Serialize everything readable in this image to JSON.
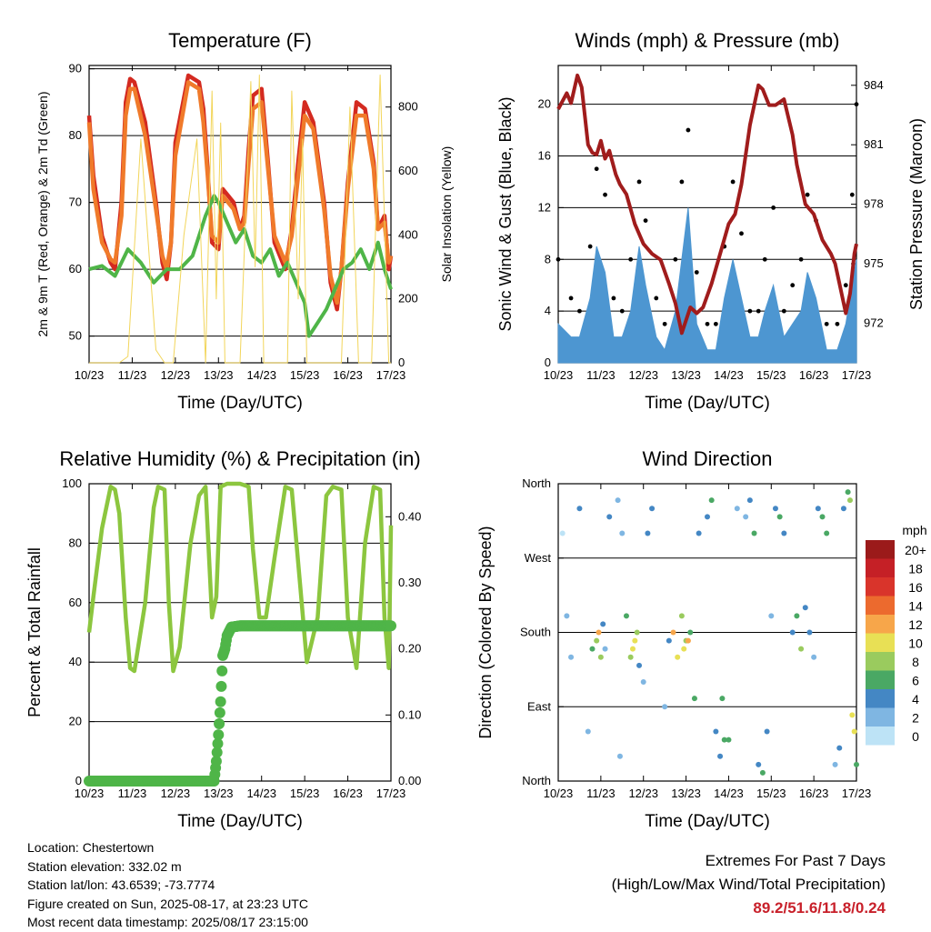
{
  "footer": {
    "location": "Location: Chestertown",
    "elevation": "Station elevation: 332.02 m",
    "latlon": "Station lat/lon: 43.6539; -73.7774",
    "created": "Figure created on Sun, 2025-08-17, at 23:23 UTC",
    "timestamp": "Most recent data timestamp: 2025/08/17 23:15:00",
    "extremes_title": "Extremes For Past 7 Days",
    "extremes_legend": "(High/Low/Max Wind/Total Precipitation)",
    "extremes_values": "89.2/51.6/11.8/0.24"
  },
  "colors": {
    "temp2m": "#d42a20",
    "temp9m": "#f07a2a",
    "dewpoint": "#4fb548",
    "solar": "#f2d55a",
    "wind": "#4d96d1",
    "gust": "#000000",
    "pressure": "#a01c1c",
    "rh": "#8cc63f",
    "precip": "#4fb548",
    "extremes": "#c8202a"
  },
  "chart_data": [
    {
      "type": "line",
      "title": "Temperature (F)",
      "xlabel": "Time (Day/UTC)",
      "ylabel": "2m & 9m T (Red, Orange) & 2m Td (Green)",
      "y2label": "Solar Insolation (Yellow)",
      "xticks": [
        "10/23",
        "11/23",
        "12/23",
        "13/23",
        "14/23",
        "15/23",
        "16/23",
        "17/23"
      ],
      "xlim": [
        0,
        7
      ],
      "ylim": [
        46,
        90.5
      ],
      "yticks": [
        50,
        60,
        70,
        80,
        90
      ],
      "y2lim": [
        0,
        930
      ],
      "y2ticks": [
        0,
        200,
        400,
        600,
        800
      ],
      "grid": true,
      "series": [
        {
          "key": "temp2m",
          "x": [
            0,
            0.1,
            0.3,
            0.5,
            0.6,
            0.75,
            0.85,
            0.95,
            1.05,
            1.3,
            1.55,
            1.7,
            1.8,
            1.9,
            2.0,
            2.3,
            2.55,
            2.65,
            2.75,
            2.85,
            3.0,
            3.1,
            3.35,
            3.5,
            3.6,
            3.7,
            3.8,
            4.0,
            4.15,
            4.3,
            4.55,
            4.7,
            4.85,
            5.0,
            5.2,
            5.45,
            5.6,
            5.75,
            5.85,
            6.0,
            6.2,
            6.4,
            6.6,
            6.7,
            6.85,
            6.95,
            7.0
          ],
          "y": [
            83,
            74,
            65,
            61,
            60,
            70,
            85,
            88.5,
            88,
            82,
            70,
            61,
            58.5,
            64,
            79,
            89,
            88,
            84,
            75,
            64,
            63,
            72,
            70,
            66,
            68,
            78,
            86,
            87,
            76,
            64,
            60,
            66,
            76,
            85,
            82,
            70,
            58,
            54,
            60,
            73,
            85,
            84,
            76,
            66,
            68,
            60,
            62
          ]
        },
        {
          "key": "temp9m",
          "x": [
            0,
            0.1,
            0.3,
            0.5,
            0.6,
            0.75,
            0.85,
            0.95,
            1.05,
            1.3,
            1.55,
            1.7,
            1.8,
            1.9,
            2.0,
            2.3,
            2.55,
            2.65,
            2.75,
            2.85,
            3.0,
            3.1,
            3.35,
            3.5,
            3.6,
            3.7,
            3.8,
            4.0,
            4.15,
            4.3,
            4.55,
            4.7,
            4.85,
            5.0,
            5.2,
            5.45,
            5.6,
            5.75,
            5.85,
            6.0,
            6.2,
            6.4,
            6.6,
            6.7,
            6.85,
            6.95,
            7.0
          ],
          "y": [
            82,
            72,
            64,
            61.5,
            61,
            68,
            83,
            87,
            87,
            80,
            69,
            62,
            60,
            64,
            77,
            88,
            87,
            82,
            74,
            65,
            64,
            71,
            69,
            66,
            67,
            76,
            84,
            85,
            75,
            65,
            61,
            65,
            74,
            83,
            81,
            69,
            59,
            55,
            60,
            72,
            83,
            83,
            75,
            66,
            67,
            61,
            62
          ]
        },
        {
          "key": "dewpoint",
          "x": [
            0,
            0.3,
            0.6,
            0.9,
            1.2,
            1.5,
            1.8,
            2.1,
            2.4,
            2.7,
            2.9,
            3.0,
            3.2,
            3.4,
            3.6,
            3.8,
            4.0,
            4.2,
            4.4,
            4.6,
            4.8,
            5.0,
            5.1,
            5.3,
            5.5,
            5.7,
            5.9,
            6.1,
            6.3,
            6.5,
            6.7,
            6.85,
            7.0
          ],
          "y": [
            60,
            60.5,
            59,
            63,
            61,
            58,
            60,
            60,
            62,
            68,
            71,
            70,
            67,
            64,
            66,
            62,
            61,
            63,
            59,
            61,
            58,
            55,
            50,
            52,
            54,
            57,
            60,
            61,
            63,
            60,
            64,
            60,
            57
          ]
        },
        {
          "key": "solar",
          "x": [
            0,
            0.3,
            0.7,
            0.9,
            1.2,
            1.55,
            1.75,
            1.95,
            2.2,
            2.5,
            2.7,
            2.85,
            2.95,
            3.05,
            3.15,
            3.3,
            3.5,
            3.75,
            3.85,
            3.95,
            4.05,
            4.2,
            4.4,
            4.6,
            4.7,
            4.85,
            4.95,
            5.05,
            5.25,
            5.5,
            5.65,
            5.85,
            6.05,
            6.25,
            6.45,
            6.55,
            6.75,
            6.95,
            7.0
          ],
          "y": [
            0,
            0,
            0,
            20,
            700,
            40,
            0,
            0,
            400,
            700,
            0,
            850,
            200,
            750,
            0,
            0,
            0,
            880,
            300,
            900,
            0,
            0,
            0,
            0,
            850,
            200,
            700,
            0,
            0,
            0,
            0,
            0,
            800,
            0,
            0,
            0,
            900,
            0,
            0
          ]
        }
      ]
    },
    {
      "type": "line",
      "title": "Winds (mph) & Pressure (mb)",
      "xlabel": "Time (Day/UTC)",
      "ylabel": "Sonic Wind & Gust (Blue, Black)",
      "y2label": "Station Pressure (Maroon)",
      "xticks": [
        "10/23",
        "11/23",
        "12/23",
        "13/23",
        "14/23",
        "15/23",
        "16/23",
        "17/23"
      ],
      "xlim": [
        0,
        7
      ],
      "ylim": [
        0,
        23
      ],
      "yticks": [
        0,
        4,
        8,
        12,
        16,
        20
      ],
      "y2lim": [
        970.0,
        985.0
      ],
      "y2ticks": [
        972,
        975,
        978,
        981,
        984
      ],
      "grid": true,
      "series": [
        {
          "key": "wind",
          "x": [
            0,
            0.3,
            0.5,
            0.75,
            0.9,
            1.1,
            1.3,
            1.5,
            1.7,
            1.9,
            2.05,
            2.3,
            2.5,
            2.75,
            2.9,
            3.05,
            3.25,
            3.5,
            3.7,
            3.9,
            4.1,
            4.3,
            4.5,
            4.7,
            4.85,
            5.05,
            5.3,
            5.5,
            5.7,
            5.85,
            6.05,
            6.3,
            6.55,
            6.75,
            6.9,
            7.0
          ],
          "y": [
            3,
            2,
            2,
            5,
            9,
            7,
            2,
            2,
            4,
            9,
            6,
            2,
            1,
            4,
            8,
            12,
            3,
            1,
            1,
            5,
            8,
            5,
            2,
            2,
            4,
            6,
            2,
            3,
            4,
            7,
            5,
            1,
            1,
            3,
            6,
            8
          ]
        },
        {
          "key": "gust",
          "x": [
            0,
            0.3,
            0.5,
            0.75,
            0.9,
            1.1,
            1.3,
            1.5,
            1.7,
            1.9,
            2.05,
            2.3,
            2.5,
            2.75,
            2.9,
            3.05,
            3.25,
            3.5,
            3.7,
            3.9,
            4.1,
            4.3,
            4.5,
            4.7,
            4.85,
            5.05,
            5.3,
            5.5,
            5.7,
            5.85,
            6.05,
            6.3,
            6.55,
            6.75,
            6.9,
            7.0
          ],
          "y": [
            8,
            5,
            4,
            9,
            15,
            13,
            5,
            4,
            8,
            14,
            11,
            5,
            3,
            8,
            14,
            18,
            7,
            3,
            3,
            9,
            14,
            10,
            4,
            4,
            8,
            12,
            4,
            6,
            8,
            13,
            11,
            3,
            3,
            6,
            13,
            20
          ]
        },
        {
          "key": "pressure",
          "x": [
            0,
            0.1,
            0.2,
            0.3,
            0.45,
            0.55,
            0.7,
            0.8,
            0.9,
            1.0,
            1.1,
            1.2,
            1.35,
            1.45,
            1.6,
            1.8,
            2.0,
            2.2,
            2.4,
            2.6,
            2.75,
            2.9,
            3.1,
            3.25,
            3.4,
            3.6,
            3.8,
            4.0,
            4.15,
            4.3,
            4.5,
            4.7,
            4.8,
            4.95,
            5.1,
            5.3,
            5.5,
            5.6,
            5.8,
            6.0,
            6.2,
            6.4,
            6.5,
            6.6,
            6.75,
            6.85,
            6.95,
            7.0
          ],
          "y": [
            982.8,
            983.2,
            983.6,
            983.1,
            984.5,
            983.9,
            981.0,
            980.6,
            980.5,
            981.2,
            980.3,
            980.7,
            979.5,
            979.0,
            978.5,
            977.0,
            976.0,
            975.5,
            975.2,
            974.0,
            973.0,
            971.5,
            972.8,
            972.5,
            972.8,
            974.0,
            975.5,
            977.0,
            977.5,
            979.0,
            982.0,
            984.0,
            983.8,
            983.0,
            983.0,
            983.3,
            981.5,
            980.0,
            978.0,
            977.5,
            976.2,
            975.5,
            975.0,
            974.0,
            972.5,
            973.5,
            975.5,
            976.0
          ]
        }
      ]
    },
    {
      "type": "line",
      "title": "Relative Humidity (%) & Precipitation (in)",
      "xlabel": "Time (Day/UTC)",
      "ylabel": "Percent & Total Rainfall",
      "xticks": [
        "10/23",
        "11/23",
        "12/23",
        "13/23",
        "14/23",
        "15/23",
        "16/23",
        "17/23"
      ],
      "xlim": [
        0,
        7
      ],
      "ylim": [
        0,
        100
      ],
      "yticks": [
        0,
        20,
        40,
        60,
        80,
        100
      ],
      "y2lim": [
        0,
        0.45
      ],
      "y2ticks": [
        "0.00",
        "0.10",
        "0.20",
        "0.30",
        "0.40"
      ],
      "grid": true,
      "series": [
        {
          "key": "rh",
          "x": [
            0,
            0.1,
            0.3,
            0.5,
            0.6,
            0.7,
            0.85,
            0.95,
            1.05,
            1.3,
            1.5,
            1.6,
            1.75,
            1.85,
            1.95,
            2.1,
            2.35,
            2.55,
            2.7,
            2.85,
            2.95,
            3.05,
            3.2,
            3.5,
            3.7,
            3.8,
            3.95,
            4.1,
            4.3,
            4.55,
            4.7,
            4.9,
            5.05,
            5.3,
            5.5,
            5.65,
            5.85,
            6.0,
            6.2,
            6.4,
            6.6,
            6.75,
            6.85,
            6.95,
            7.0
          ],
          "y": [
            50,
            62,
            85,
            99,
            98,
            90,
            55,
            38,
            37,
            60,
            92,
            99,
            98,
            60,
            37,
            45,
            80,
            96,
            99,
            55,
            62,
            99,
            100,
            100,
            99,
            78,
            55,
            55,
            75,
            99,
            98,
            65,
            40,
            55,
            96,
            99,
            98,
            55,
            38,
            80,
            99,
            98,
            55,
            38,
            86
          ]
        },
        {
          "key": "precip",
          "x": [
            0,
            0.5,
            1.0,
            1.5,
            2.0,
            2.5,
            2.9,
            2.95,
            3.0,
            3.05,
            3.1,
            3.15,
            3.2,
            3.3,
            3.5,
            4.0,
            5.0,
            6.0,
            7.0
          ],
          "y": [
            0,
            0,
            0,
            0,
            0,
            0,
            0,
            0.03,
            0.07,
            0.12,
            0.19,
            0.2,
            0.22,
            0.233,
            0.235,
            0.235,
            0.235,
            0.235,
            0.235
          ]
        }
      ]
    },
    {
      "type": "scatter",
      "title": "Wind Direction",
      "xlabel": "Time (Day/UTC)",
      "ylabel": "Direction (Colored By Speed)",
      "xticks": [
        "10/23",
        "11/23",
        "12/23",
        "13/23",
        "14/23",
        "15/23",
        "16/23",
        "17/23"
      ],
      "xlim": [
        0,
        7
      ],
      "ylim": [
        0,
        360
      ],
      "ytick_labels": [
        "North",
        "East",
        "South",
        "West",
        "North"
      ],
      "yticks": [
        0,
        90,
        180,
        270,
        360
      ],
      "grid": true,
      "legend": {
        "title": "mph",
        "placement": "right",
        "labels": [
          "20+",
          "18",
          "16",
          "14",
          "12",
          "10",
          "8",
          "6",
          "4",
          "2",
          "0"
        ],
        "colors": [
          "#9b1a1a",
          "#c52026",
          "#d9342b",
          "#ec6a2e",
          "#f7a64a",
          "#e8e055",
          "#9acb5e",
          "#4aa864",
          "#4487c4",
          "#7fb6e2",
          "#bde3f6"
        ]
      },
      "points": {
        "x": [
          0.1,
          0.2,
          0.3,
          0.5,
          0.7,
          0.8,
          0.9,
          0.95,
          1.0,
          1.05,
          1.1,
          1.2,
          1.4,
          1.45,
          1.5,
          1.6,
          1.7,
          1.75,
          1.8,
          1.85,
          1.9,
          2.0,
          2.1,
          2.2,
          2.5,
          2.6,
          2.7,
          2.8,
          2.9,
          2.95,
          3.0,
          3.05,
          3.1,
          3.2,
          3.3,
          3.5,
          3.6,
          3.7,
          3.8,
          3.85,
          3.9,
          4.0,
          4.2,
          4.4,
          4.5,
          4.6,
          4.7,
          4.8,
          4.9,
          5.0,
          5.1,
          5.2,
          5.3,
          5.5,
          5.6,
          5.7,
          5.8,
          5.9,
          6.0,
          6.1,
          6.2,
          6.3,
          6.5,
          6.6,
          6.7,
          6.8,
          6.85,
          6.9,
          6.95,
          7.0
        ],
        "y": [
          300,
          200,
          150,
          330,
          60,
          160,
          170,
          180,
          150,
          190,
          160,
          320,
          340,
          30,
          300,
          200,
          150,
          160,
          170,
          180,
          140,
          120,
          300,
          330,
          90,
          170,
          180,
          150,
          200,
          160,
          170,
          170,
          180,
          100,
          300,
          320,
          340,
          60,
          30,
          100,
          50,
          50,
          330,
          320,
          340,
          300,
          20,
          10,
          60,
          200,
          330,
          320,
          300,
          180,
          200,
          160,
          210,
          180,
          150,
          330,
          320,
          300,
          20,
          40,
          330,
          350,
          340,
          80,
          60,
          20
        ],
        "speed": [
          0,
          1,
          2,
          3,
          1,
          5,
          8,
          11,
          7,
          4,
          2,
          3,
          2,
          1,
          2,
          6,
          7,
          10,
          9,
          8,
          3,
          2,
          3,
          4,
          2,
          4,
          12,
          9,
          7,
          10,
          8,
          11,
          6,
          5,
          3,
          4,
          5,
          4,
          3,
          6,
          5,
          6,
          2,
          2,
          3,
          5,
          4,
          6,
          3,
          2,
          3,
          5,
          4,
          3,
          6,
          7,
          4,
          3,
          2,
          4,
          6,
          5,
          2,
          3,
          4,
          5,
          7,
          9,
          10,
          6
        ]
      }
    }
  ]
}
